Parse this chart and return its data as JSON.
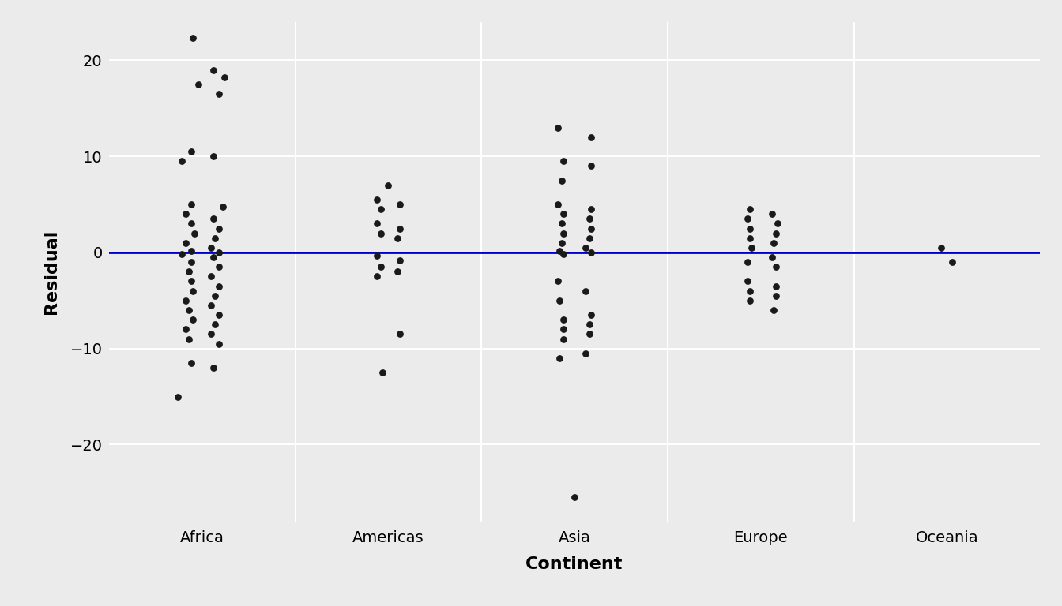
{
  "title": "",
  "xlabel": "Continent",
  "ylabel": "Residual",
  "background_color": "#EBEBEB",
  "grid_color": "#FFFFFF",
  "line_color": "#0000CD",
  "point_color": "#1A1A1A",
  "point_size": 28,
  "ylim": [
    -28,
    24
  ],
  "yticks": [
    -20,
    -10,
    0,
    10,
    20
  ],
  "continents": [
    "Africa",
    "Americas",
    "Asia",
    "Europe",
    "Oceania"
  ],
  "africa_residuals": [
    22.3,
    19.0,
    18.2,
    17.5,
    16.5,
    10.5,
    10.0,
    9.5,
    5.0,
    4.8,
    4.0,
    3.5,
    3.0,
    2.5,
    2.0,
    1.5,
    1.0,
    0.5,
    0.2,
    0.0,
    -0.2,
    -0.5,
    -1.0,
    -1.5,
    -2.0,
    -2.5,
    -3.0,
    -3.5,
    -4.0,
    -4.5,
    -5.0,
    -5.5,
    -6.0,
    -6.5,
    -7.0,
    -7.5,
    -8.0,
    -8.5,
    -9.0,
    -9.5,
    -11.5,
    -12.0,
    -15.0
  ],
  "africa_jitter": [
    -0.05,
    0.06,
    0.12,
    -0.02,
    0.09,
    -0.06,
    0.06,
    -0.11,
    -0.06,
    0.11,
    -0.09,
    0.06,
    -0.06,
    0.09,
    -0.04,
    0.07,
    -0.09,
    0.05,
    -0.06,
    0.09,
    -0.11,
    0.06,
    -0.06,
    0.09,
    -0.07,
    0.05,
    -0.06,
    0.09,
    -0.05,
    0.07,
    -0.09,
    0.05,
    -0.07,
    0.09,
    -0.05,
    0.07,
    -0.09,
    0.05,
    -0.07,
    0.09,
    -0.06,
    0.06,
    -0.13
  ],
  "americas_residuals": [
    7.0,
    5.5,
    5.0,
    4.5,
    3.0,
    2.5,
    2.0,
    1.5,
    -0.3,
    -0.8,
    -1.5,
    -2.0,
    -2.5,
    -8.5,
    -12.5
  ],
  "americas_jitter": [
    0.0,
    -0.06,
    0.06,
    -0.04,
    -0.06,
    0.06,
    -0.04,
    0.05,
    -0.06,
    0.06,
    -0.04,
    0.05,
    -0.06,
    0.06,
    -0.03
  ],
  "asia_residuals": [
    13.0,
    12.0,
    9.5,
    9.0,
    7.5,
    5.0,
    4.5,
    4.0,
    3.5,
    3.0,
    2.5,
    2.0,
    1.5,
    1.0,
    0.5,
    0.2,
    0.0,
    -0.2,
    -3.0,
    -4.0,
    -5.0,
    -6.5,
    -7.0,
    -7.5,
    -8.0,
    -8.5,
    -9.0,
    -10.5,
    -11.0,
    -25.5
  ],
  "asia_jitter": [
    -0.09,
    0.09,
    -0.06,
    0.09,
    -0.07,
    -0.09,
    0.09,
    -0.06,
    0.08,
    -0.07,
    0.09,
    -0.06,
    0.08,
    -0.07,
    0.06,
    -0.08,
    0.09,
    -0.06,
    -0.09,
    0.06,
    -0.08,
    0.09,
    -0.06,
    0.08,
    -0.06,
    0.08,
    -0.06,
    0.06,
    -0.08,
    0.0
  ],
  "europe_residuals": [
    4.5,
    4.0,
    3.5,
    3.0,
    2.5,
    2.0,
    1.5,
    1.0,
    0.5,
    -0.5,
    -1.0,
    -1.5,
    -3.0,
    -3.5,
    -4.0,
    -4.5,
    -5.0,
    -6.0
  ],
  "europe_jitter": [
    -0.06,
    0.06,
    -0.07,
    0.09,
    -0.06,
    0.08,
    -0.06,
    0.07,
    -0.05,
    0.06,
    -0.07,
    0.08,
    -0.07,
    0.08,
    -0.06,
    0.08,
    -0.06,
    0.07
  ],
  "oceania_residuals": [
    0.5,
    -1.0
  ],
  "oceania_jitter": [
    -0.03,
    0.03
  ]
}
